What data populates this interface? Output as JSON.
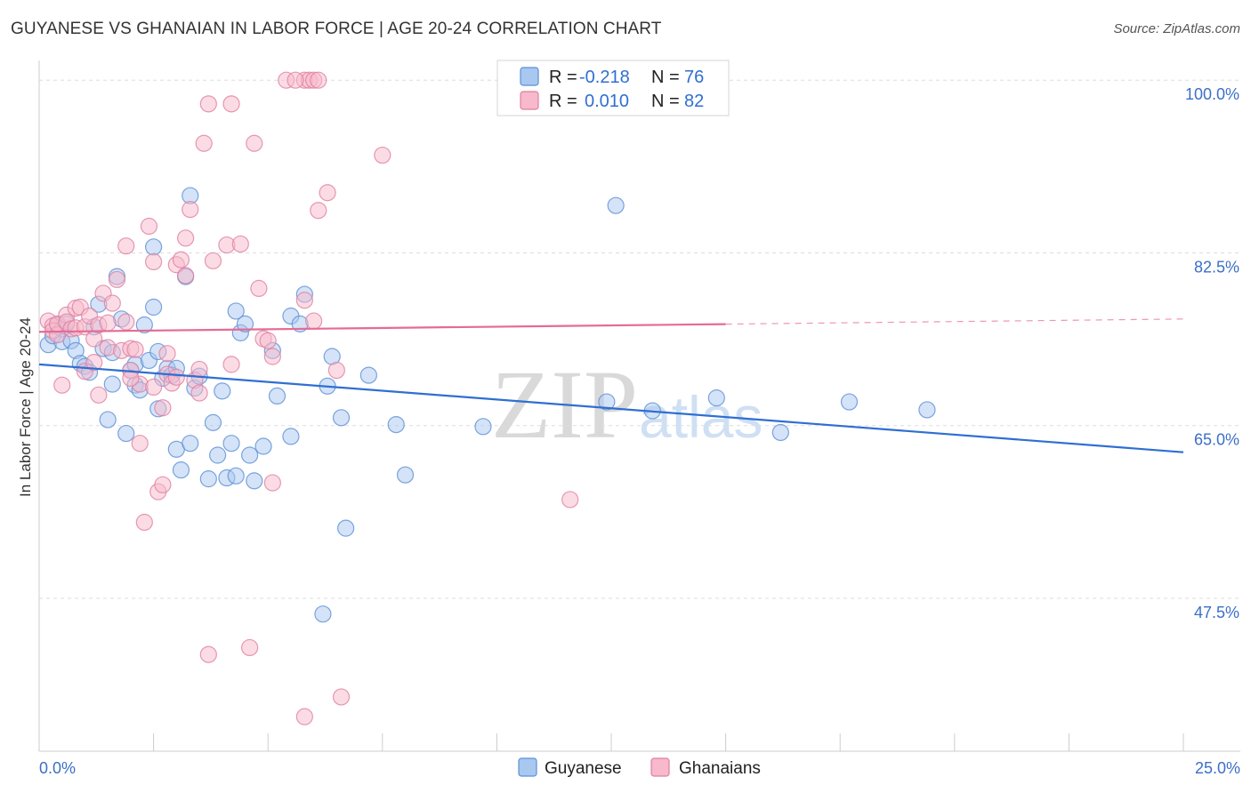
{
  "title": "GUYANESE VS GHANAIAN IN LABOR FORCE | AGE 20-24 CORRELATION CHART",
  "source": "Source: ZipAtlas.com",
  "watermark": {
    "zip": "ZIP",
    "atlas": "atlas"
  },
  "colors": {
    "guyanese_fill": "#a9c8f0",
    "guyanese_stroke": "#5b8fd6",
    "guyanese_line": "#2f6fd1",
    "ghanaian_fill": "#f7b9cb",
    "ghanaian_stroke": "#e07fa0",
    "ghanaian_line": "#e56b95",
    "grid": "#dddddd",
    "axis_text": "#3b6fc7"
  },
  "legend": {
    "rows": [
      {
        "r_label": "R =",
        "r_value": "-0.218",
        "n_label": "N =",
        "n_value": "76"
      },
      {
        "r_label": "R =",
        "r_value": "0.010",
        "n_label": "N =",
        "n_value": "82"
      }
    ]
  },
  "chart_data": {
    "type": "scatter",
    "title": "GUYANESE VS GHANAIAN IN LABOR FORCE | AGE 20-24 CORRELATION CHART",
    "xlabel": "",
    "ylabel": "In Labor Force | Age 20-24",
    "xlim": [
      0,
      25
    ],
    "ylim": [
      32,
      102
    ],
    "x_tick_labels": [
      "0.0%",
      "25.0%"
    ],
    "y_ticks": [
      100,
      82.5,
      65,
      47.5
    ],
    "y_tick_labels": [
      "100.0%",
      "82.5%",
      "65.0%",
      "47.5%"
    ],
    "legend_position": "top-center",
    "series": [
      {
        "name": "Guyanese",
        "r": -0.218,
        "n": 76,
        "trend": {
          "x": [
            0,
            25
          ],
          "y": [
            71.2,
            62.3
          ],
          "solid_until": 25
        },
        "points": [
          [
            0.2,
            73.2
          ],
          [
            0.3,
            74.1
          ],
          [
            0.4,
            75.2
          ],
          [
            0.5,
            74.8
          ],
          [
            0.5,
            73.5
          ],
          [
            0.6,
            75.3
          ],
          [
            0.7,
            73.6
          ],
          [
            0.8,
            72.6
          ],
          [
            0.9,
            71.3
          ],
          [
            1.0,
            71.0
          ],
          [
            1.1,
            70.4
          ],
          [
            1.2,
            75.0
          ],
          [
            1.3,
            77.3
          ],
          [
            1.4,
            72.8
          ],
          [
            1.5,
            65.6
          ],
          [
            1.6,
            72.4
          ],
          [
            1.6,
            69.2
          ],
          [
            1.7,
            80.1
          ],
          [
            1.8,
            75.8
          ],
          [
            1.9,
            64.2
          ],
          [
            2.0,
            70.6
          ],
          [
            2.1,
            71.2
          ],
          [
            2.1,
            69.1
          ],
          [
            2.2,
            68.6
          ],
          [
            2.3,
            75.2
          ],
          [
            2.4,
            71.6
          ],
          [
            2.5,
            77.0
          ],
          [
            2.5,
            83.1
          ],
          [
            2.6,
            66.7
          ],
          [
            2.7,
            69.8
          ],
          [
            2.8,
            70.8
          ],
          [
            2.9,
            70.1
          ],
          [
            3.0,
            62.6
          ],
          [
            3.0,
            70.8
          ],
          [
            3.1,
            60.5
          ],
          [
            3.2,
            80.1
          ],
          [
            3.3,
            63.2
          ],
          [
            3.3,
            88.3
          ],
          [
            3.4,
            68.8
          ],
          [
            3.5,
            70.0
          ],
          [
            3.7,
            59.6
          ],
          [
            3.8,
            65.3
          ],
          [
            3.9,
            62.0
          ],
          [
            4.0,
            68.5
          ],
          [
            4.1,
            59.7
          ],
          [
            4.2,
            63.2
          ],
          [
            4.3,
            59.9
          ],
          [
            4.3,
            76.6
          ],
          [
            4.4,
            74.4
          ],
          [
            4.5,
            75.3
          ],
          [
            4.6,
            62.0
          ],
          [
            4.7,
            59.4
          ],
          [
            4.9,
            62.9
          ],
          [
            5.1,
            72.6
          ],
          [
            5.2,
            68.0
          ],
          [
            5.5,
            76.1
          ],
          [
            5.5,
            63.9
          ],
          [
            5.7,
            75.3
          ],
          [
            5.8,
            78.3
          ],
          [
            6.2,
            45.9
          ],
          [
            6.3,
            69.0
          ],
          [
            6.4,
            72.0
          ],
          [
            6.6,
            65.8
          ],
          [
            6.7,
            54.6
          ],
          [
            7.2,
            70.1
          ],
          [
            7.8,
            65.1
          ],
          [
            8.0,
            60.0
          ],
          [
            9.7,
            64.9
          ],
          [
            12.4,
            67.4
          ],
          [
            12.6,
            87.3
          ],
          [
            13.4,
            66.5
          ],
          [
            14.8,
            67.8
          ],
          [
            16.2,
            64.3
          ],
          [
            17.7,
            67.4
          ],
          [
            19.4,
            66.6
          ],
          [
            2.6,
            72.5
          ]
        ]
      },
      {
        "name": "Ghanaians",
        "r": 0.01,
        "n": 82,
        "trend": {
          "x": [
            0,
            25
          ],
          "y": [
            74.5,
            75.8
          ],
          "solid_until": 15
        },
        "points": [
          [
            0.2,
            75.6
          ],
          [
            0.3,
            75.1
          ],
          [
            0.3,
            74.6
          ],
          [
            0.4,
            74.2
          ],
          [
            0.4,
            75.3
          ],
          [
            0.5,
            69.1
          ],
          [
            0.6,
            76.2
          ],
          [
            0.6,
            75.5
          ],
          [
            0.7,
            74.8
          ],
          [
            0.8,
            76.9
          ],
          [
            0.8,
            74.9
          ],
          [
            0.9,
            77.0
          ],
          [
            1.0,
            75.0
          ],
          [
            1.0,
            70.5
          ],
          [
            1.1,
            76.1
          ],
          [
            1.2,
            73.8
          ],
          [
            1.3,
            75.2
          ],
          [
            1.3,
            68.1
          ],
          [
            1.4,
            78.4
          ],
          [
            1.5,
            75.4
          ],
          [
            1.5,
            72.9
          ],
          [
            1.6,
            77.4
          ],
          [
            1.7,
            79.8
          ],
          [
            1.8,
            72.6
          ],
          [
            1.9,
            75.5
          ],
          [
            1.9,
            83.2
          ],
          [
            2.0,
            72.8
          ],
          [
            2.0,
            70.6
          ],
          [
            2.1,
            72.7
          ],
          [
            2.2,
            69.2
          ],
          [
            2.2,
            63.2
          ],
          [
            2.3,
            55.2
          ],
          [
            2.4,
            85.2
          ],
          [
            2.5,
            81.6
          ],
          [
            2.5,
            68.9
          ],
          [
            2.6,
            58.3
          ],
          [
            2.7,
            66.8
          ],
          [
            2.7,
            59.0
          ],
          [
            2.8,
            72.3
          ],
          [
            2.8,
            70.2
          ],
          [
            2.9,
            69.3
          ],
          [
            3.0,
            81.3
          ],
          [
            3.0,
            69.9
          ],
          [
            3.1,
            81.8
          ],
          [
            3.2,
            84.0
          ],
          [
            3.2,
            80.2
          ],
          [
            3.3,
            86.9
          ],
          [
            3.4,
            69.6
          ],
          [
            3.5,
            70.7
          ],
          [
            3.5,
            68.3
          ],
          [
            3.6,
            93.6
          ],
          [
            3.7,
            97.6
          ],
          [
            3.7,
            41.8
          ],
          [
            3.8,
            81.7
          ],
          [
            4.1,
            83.3
          ],
          [
            4.2,
            97.6
          ],
          [
            4.2,
            71.2
          ],
          [
            4.4,
            83.4
          ],
          [
            4.6,
            42.5
          ],
          [
            4.7,
            93.6
          ],
          [
            4.8,
            78.9
          ],
          [
            4.9,
            73.8
          ],
          [
            5.0,
            73.6
          ],
          [
            5.1,
            72.0
          ],
          [
            5.1,
            59.2
          ],
          [
            5.4,
            100.0
          ],
          [
            5.8,
            77.7
          ],
          [
            5.8,
            100.0
          ],
          [
            5.8,
            35.5
          ],
          [
            5.9,
            100.0
          ],
          [
            6.0,
            75.6
          ],
          [
            6.0,
            100.0
          ],
          [
            6.1,
            100.0
          ],
          [
            6.1,
            86.8
          ],
          [
            6.3,
            88.6
          ],
          [
            6.5,
            70.6
          ],
          [
            6.6,
            37.5
          ],
          [
            7.5,
            92.4
          ],
          [
            11.6,
            57.5
          ],
          [
            5.6,
            100.0
          ],
          [
            2.0,
            69.8
          ],
          [
            1.2,
            71.4
          ]
        ]
      }
    ]
  },
  "bottom_legend": {
    "items": [
      "Guyanese",
      "Ghanaians"
    ]
  }
}
